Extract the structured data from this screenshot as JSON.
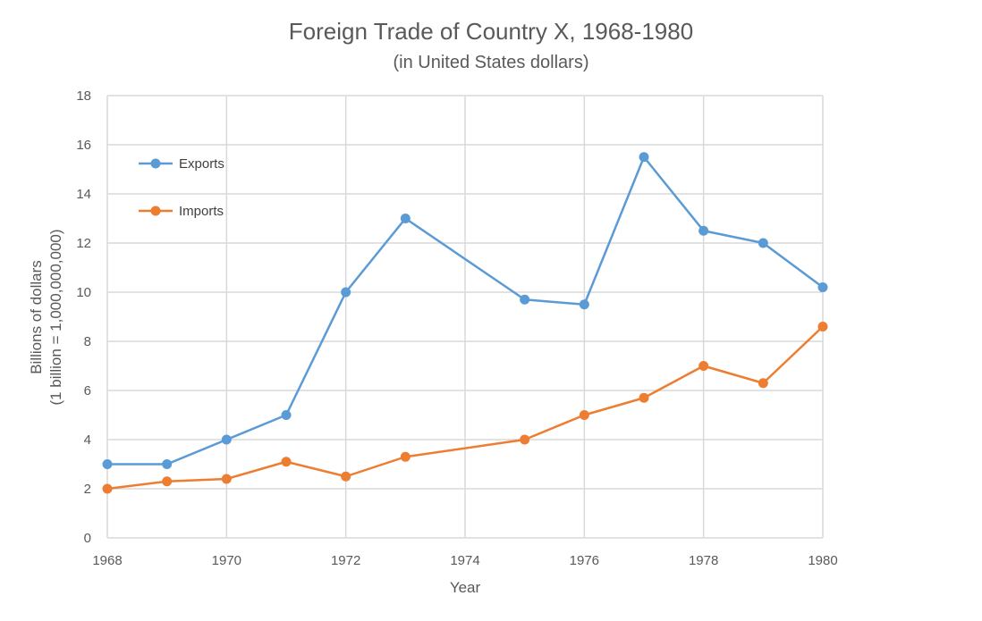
{
  "chart_data": {
    "type": "line",
    "title": "Foreign Trade of Country X, 1968-1980",
    "subtitle": "(in United States dollars)",
    "xlabel": "Year",
    "ylabel_line1": "Billions of dollars",
    "ylabel_line2": "(1 billion = 1,000,000,000)",
    "xlim": [
      1968,
      1980
    ],
    "ylim": [
      0,
      18
    ],
    "x_ticks": [
      1968,
      1970,
      1972,
      1974,
      1976,
      1978,
      1980
    ],
    "y_ticks": [
      0,
      2,
      4,
      6,
      8,
      10,
      12,
      14,
      16,
      18
    ],
    "grid": true,
    "legend_position": "top-left",
    "series": [
      {
        "name": "Exports",
        "color": "#5b9bd5",
        "points": [
          {
            "x": 1968,
            "y": 3
          },
          {
            "x": 1969,
            "y": 3
          },
          {
            "x": 1970,
            "y": 4
          },
          {
            "x": 1971,
            "y": 5
          },
          {
            "x": 1972,
            "y": 10
          },
          {
            "x": 1973,
            "y": 13
          },
          {
            "x": 1975,
            "y": 9.7
          },
          {
            "x": 1976,
            "y": 9.5
          },
          {
            "x": 1977,
            "y": 15.5
          },
          {
            "x": 1978,
            "y": 12.5
          },
          {
            "x": 1979,
            "y": 12
          },
          {
            "x": 1980,
            "y": 10.2
          }
        ]
      },
      {
        "name": "Imports",
        "color": "#ed7d31",
        "points": [
          {
            "x": 1968,
            "y": 2
          },
          {
            "x": 1969,
            "y": 2.3
          },
          {
            "x": 1970,
            "y": 2.4
          },
          {
            "x": 1971,
            "y": 3.1
          },
          {
            "x": 1972,
            "y": 2.5
          },
          {
            "x": 1973,
            "y": 3.3
          },
          {
            "x": 1975,
            "y": 4
          },
          {
            "x": 1976,
            "y": 5
          },
          {
            "x": 1977,
            "y": 5.7
          },
          {
            "x": 1978,
            "y": 7
          },
          {
            "x": 1979,
            "y": 6.3
          },
          {
            "x": 1980,
            "y": 8.6
          }
        ]
      }
    ]
  }
}
